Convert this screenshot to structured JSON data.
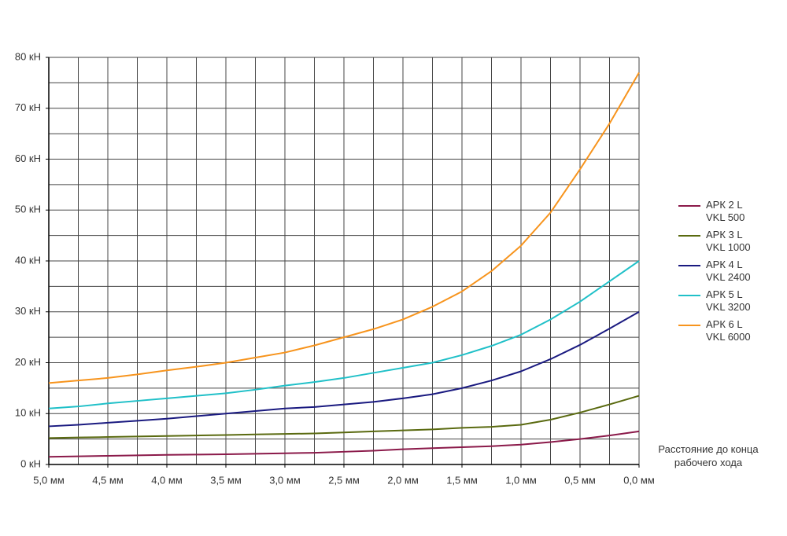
{
  "chart_data": {
    "type": "line",
    "x_label": "Расстояние до конца рабочего хода",
    "x": [
      5.0,
      4.75,
      4.5,
      4.25,
      4.0,
      3.75,
      3.5,
      3.25,
      3.0,
      2.75,
      2.5,
      2.25,
      2.0,
      1.75,
      1.5,
      1.25,
      1.0,
      0.75,
      0.5,
      0.25,
      0.0
    ],
    "xlim": [
      5.0,
      0.0
    ],
    "xticks": [
      {
        "value": 5.0,
        "label": "5,0 мм"
      },
      {
        "value": 4.5,
        "label": "4,5 мм"
      },
      {
        "value": 4.0,
        "label": "4,0 мм"
      },
      {
        "value": 3.5,
        "label": "3,5 мм"
      },
      {
        "value": 3.0,
        "label": "3,0 мм"
      },
      {
        "value": 2.5,
        "label": "2,5 мм"
      },
      {
        "value": 2.0,
        "label": "2,0 мм"
      },
      {
        "value": 1.5,
        "label": "1,5 мм"
      },
      {
        "value": 1.0,
        "label": "1,0 мм"
      },
      {
        "value": 0.5,
        "label": "0,5 мм"
      },
      {
        "value": 0.0,
        "label": "0,0 мм"
      }
    ],
    "x_minor_ticks": [
      4.75,
      4.25,
      3.75,
      3.25,
      2.75,
      2.25,
      1.75,
      1.25,
      0.75,
      0.25
    ],
    "ylim": [
      0,
      80
    ],
    "yticks": [
      {
        "value": 0,
        "label": "0 кН"
      },
      {
        "value": 10,
        "label": "10 кН"
      },
      {
        "value": 20,
        "label": "20 кН"
      },
      {
        "value": 30,
        "label": "30 кН"
      },
      {
        "value": 40,
        "label": "40 кН"
      },
      {
        "value": 50,
        "label": "50 кН"
      },
      {
        "value": 60,
        "label": "60 кН"
      },
      {
        "value": 70,
        "label": "70 кН"
      },
      {
        "value": 80,
        "label": "80 кН"
      }
    ],
    "y_minor_ticks": [
      5,
      15,
      25,
      35,
      45,
      55,
      65,
      75
    ],
    "grid": true,
    "legend": "right",
    "series": [
      {
        "name": "АРК 2 L VKL 500",
        "color": "#8b1a4a",
        "values": [
          1.5,
          1.6,
          1.7,
          1.8,
          1.9,
          1.95,
          2.0,
          2.1,
          2.2,
          2.3,
          2.5,
          2.7,
          3.0,
          3.2,
          3.4,
          3.6,
          3.9,
          4.4,
          5.0,
          5.7,
          6.5
        ]
      },
      {
        "name": "АРК 3 L VKL 1000",
        "color": "#5a6a10",
        "values": [
          5.2,
          5.3,
          5.4,
          5.5,
          5.6,
          5.7,
          5.8,
          5.9,
          6.0,
          6.1,
          6.3,
          6.5,
          6.7,
          6.9,
          7.2,
          7.4,
          7.8,
          8.8,
          10.2,
          11.8,
          13.5
        ]
      },
      {
        "name": "АРК 4 L VKL 2400",
        "color": "#1a1a80",
        "values": [
          7.5,
          7.8,
          8.2,
          8.6,
          9.0,
          9.5,
          10.0,
          10.5,
          11.0,
          11.3,
          11.8,
          12.3,
          13.0,
          13.8,
          15.0,
          16.5,
          18.3,
          20.7,
          23.5,
          26.7,
          30.0
        ]
      },
      {
        "name": "АРК 5 L VKL 3200",
        "color": "#20c0c8",
        "values": [
          11.0,
          11.4,
          12.0,
          12.5,
          13.0,
          13.5,
          14.0,
          14.7,
          15.5,
          16.2,
          17.0,
          18.0,
          19.0,
          20.0,
          21.5,
          23.3,
          25.5,
          28.5,
          32.0,
          36.0,
          40.0
        ]
      },
      {
        "name": "АРК 6 L VKL 6000",
        "color": "#f7941d",
        "values": [
          16.0,
          16.5,
          17.0,
          17.7,
          18.5,
          19.2,
          20.0,
          21.0,
          22.0,
          23.4,
          25.0,
          26.6,
          28.5,
          31.0,
          34.0,
          38.0,
          43.0,
          49.5,
          58.0,
          67.0,
          77.0
        ]
      }
    ]
  }
}
